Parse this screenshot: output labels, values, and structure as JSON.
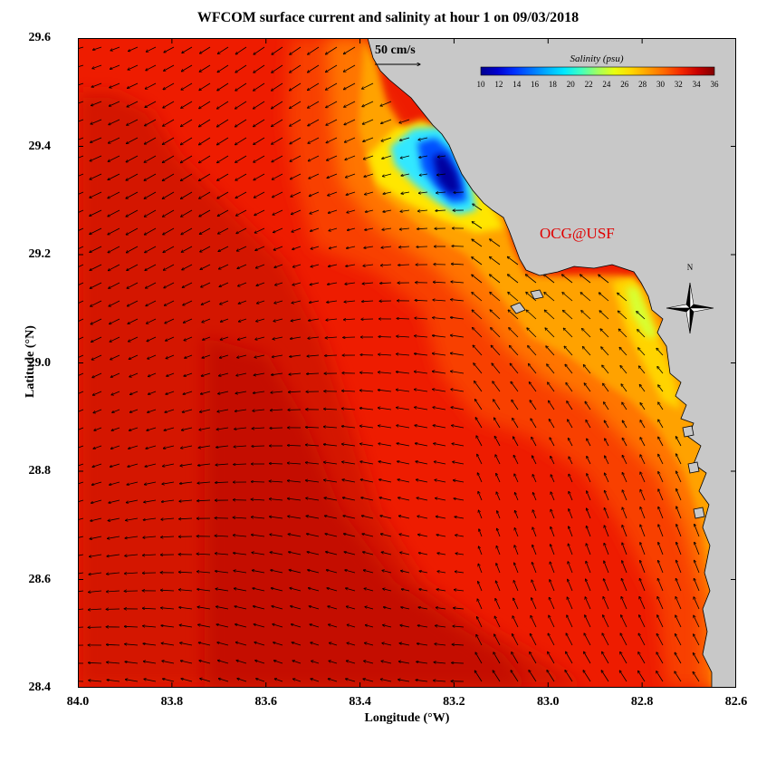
{
  "title": "WFCOM surface current and salinity at hour 1 on 09/03/2018",
  "x_axis": {
    "label": "Longitude (°W)",
    "ticks": [
      "84.0",
      "83.8",
      "83.6",
      "83.4",
      "83.2",
      "83.0",
      "82.8",
      "82.6"
    ],
    "range": [
      84.0,
      82.6
    ]
  },
  "y_axis": {
    "label": "Latitude (°N)",
    "ticks": [
      "29.6",
      "29.4",
      "29.2",
      "29.0",
      "28.8",
      "28.6",
      "28.4"
    ],
    "range": [
      28.4,
      29.6
    ]
  },
  "scale_arrow": {
    "label": "50 cm/s",
    "value_cm_s": 50
  },
  "colorbar": {
    "title": "Salinity (psu)",
    "ticks": [
      "10",
      "12",
      "14",
      "16",
      "18",
      "20",
      "22",
      "24",
      "26",
      "28",
      "30",
      "32",
      "34",
      "36"
    ],
    "colors": [
      "#00008f",
      "#0000d0",
      "#0030ff",
      "#0070ff",
      "#00b0ff",
      "#00e8ff",
      "#40ffc0",
      "#a0ff60",
      "#e8ff10",
      "#ffd800",
      "#ffa000",
      "#ff6800",
      "#f52800",
      "#c80000",
      "#800000"
    ]
  },
  "credit": "OCG@USF",
  "north_arrow_label": "N",
  "colors": {
    "land": "#c8c8c8",
    "sea_base": "#ee1a00",
    "sea_offshore": "#d41400",
    "sea_deep": "#c41000",
    "coast_orange": "#ff7a00",
    "text_red": "#e00000"
  }
}
